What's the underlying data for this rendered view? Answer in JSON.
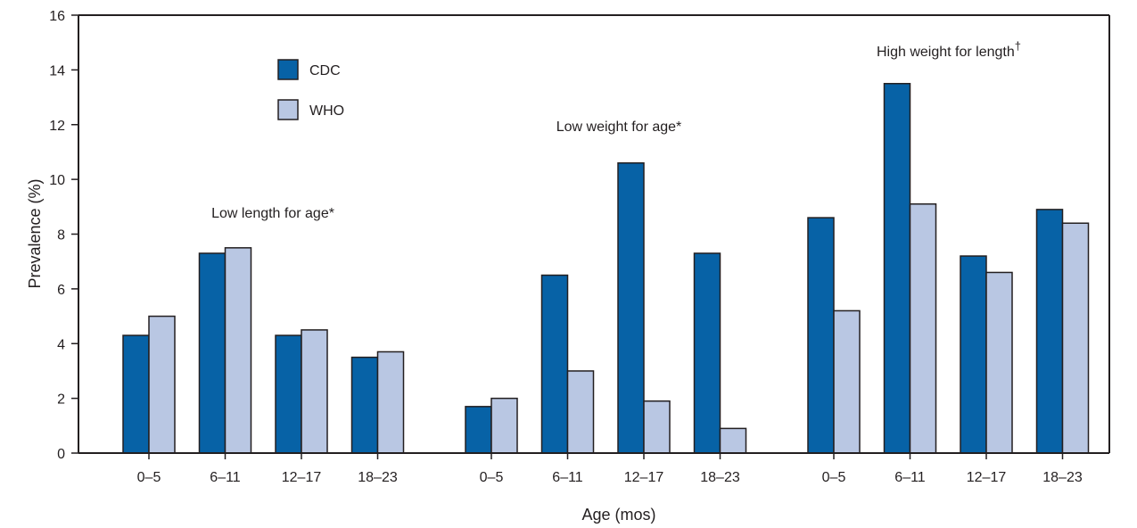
{
  "chart_data": {
    "type": "bar",
    "xlabel": "Age (mos)",
    "ylabel": "Prevalence (%)",
    "ylim": [
      0,
      16
    ],
    "yticks": [
      0,
      2,
      4,
      6,
      8,
      10,
      12,
      14,
      16
    ],
    "grid": false,
    "legend_position": "top-left",
    "groups": [
      {
        "label": "Low length for age*",
        "categories": [
          "0–5",
          "6–11",
          "12–17",
          "18–23"
        ],
        "series": [
          {
            "name": "CDC",
            "values": [
              4.3,
              7.3,
              4.3,
              3.5
            ]
          },
          {
            "name": "WHO",
            "values": [
              5.0,
              7.5,
              4.5,
              3.7
            ]
          }
        ]
      },
      {
        "label": "Low weight for age*",
        "categories": [
          "0–5",
          "6–11",
          "12–17",
          "18–23"
        ],
        "series": [
          {
            "name": "CDC",
            "values": [
              1.7,
              6.5,
              10.6,
              7.3
            ]
          },
          {
            "name": "WHO",
            "values": [
              2.0,
              3.0,
              1.9,
              0.9
            ]
          }
        ]
      },
      {
        "label": "High weight for length",
        "label_mark": "†",
        "categories": [
          "0–5",
          "6–11",
          "12–17",
          "18–23"
        ],
        "series": [
          {
            "name": "CDC",
            "values": [
              8.6,
              13.5,
              7.2,
              8.9
            ]
          },
          {
            "name": "WHO",
            "values": [
              5.2,
              9.1,
              6.6,
              8.4
            ]
          }
        ]
      }
    ],
    "legend": [
      {
        "name": "CDC",
        "color": "#0762a6"
      },
      {
        "name": "WHO",
        "color": "#b9c7e3"
      }
    ]
  }
}
